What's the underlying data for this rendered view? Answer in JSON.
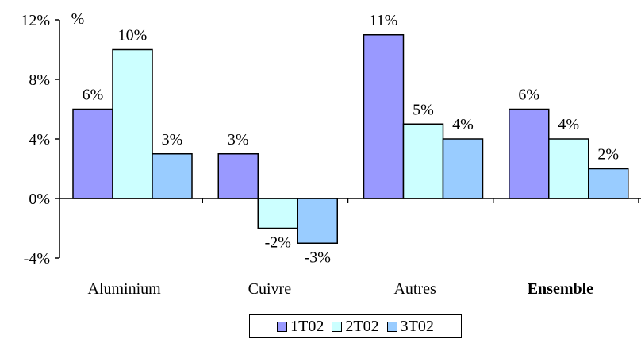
{
  "chart_data": {
    "type": "bar",
    "categories": [
      "Aluminium",
      "Cuivre",
      "Autres",
      "Ensemble"
    ],
    "highlight_category": "Ensemble",
    "highlight_color": "#cc0000",
    "unit_label": "%",
    "series": [
      {
        "name": "1T02",
        "values": [
          6,
          3,
          11,
          6
        ],
        "labels": [
          "6%",
          "3%",
          "11%",
          "6%"
        ],
        "color": "#9999ff"
      },
      {
        "name": "2T02",
        "values": [
          10,
          -2,
          5,
          4
        ],
        "labels": [
          "10%",
          "-2%",
          "5%",
          "4%"
        ],
        "color": "#ccffff"
      },
      {
        "name": "3T02",
        "values": [
          3,
          -3,
          4,
          2
        ],
        "labels": [
          "3%",
          "-3%",
          "4%",
          "2%"
        ],
        "color": "#99ccff"
      }
    ],
    "ylim": [
      -4,
      12
    ],
    "yticks": [
      -4,
      0,
      4,
      8,
      12
    ],
    "ytick_labels": [
      "-4%",
      "0%",
      "4%",
      "8%",
      "12%"
    ],
    "grid": false,
    "legend_position": "bottom"
  }
}
